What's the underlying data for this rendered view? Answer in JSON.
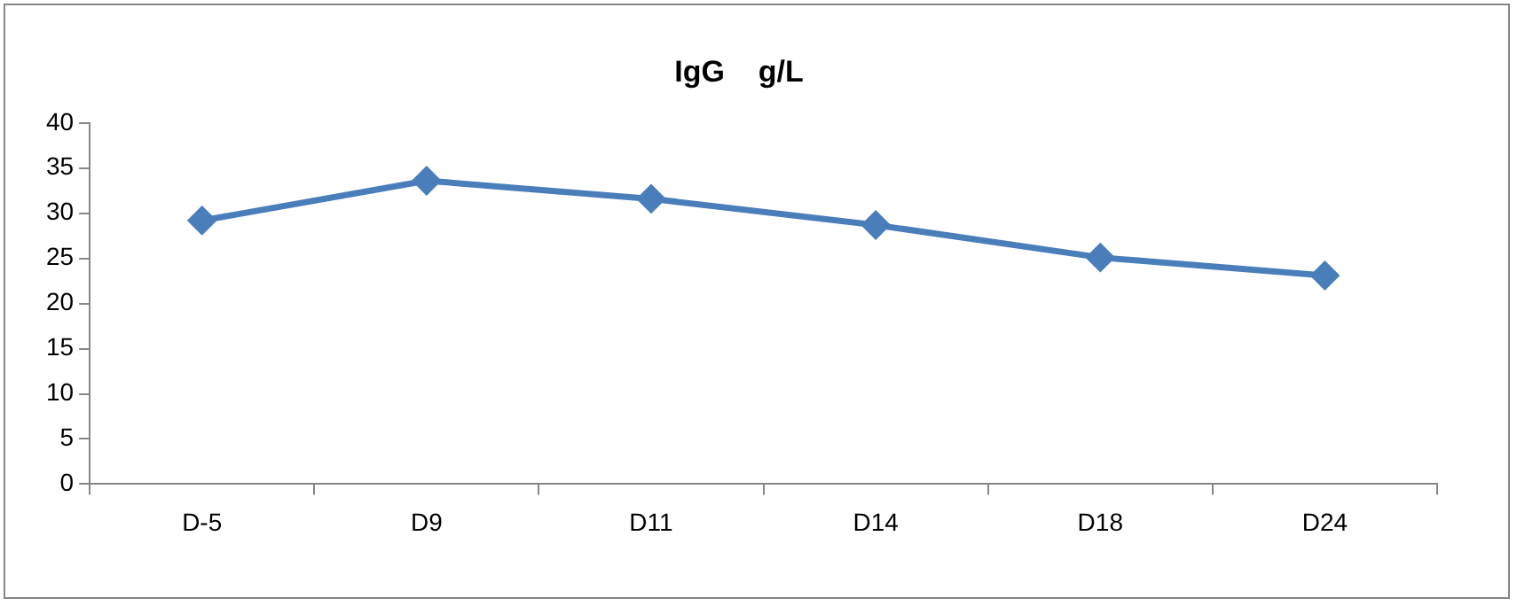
{
  "chart_data": {
    "type": "line",
    "title": "IgG    g/L",
    "categories": [
      "D-5",
      "D9",
      "D11",
      "D14",
      "D18",
      "D24"
    ],
    "series": [
      {
        "color": "#4a7ebb",
        "values": [
          29.2,
          33.6,
          31.6,
          28.7,
          25.1,
          23.1
        ]
      }
    ],
    "ylim": [
      0,
      40
    ],
    "yticks": [
      0,
      5,
      10,
      15,
      20,
      25,
      30,
      35,
      40
    ],
    "grid": false,
    "legend": false,
    "marker": "diamond",
    "line_style": "solid"
  }
}
